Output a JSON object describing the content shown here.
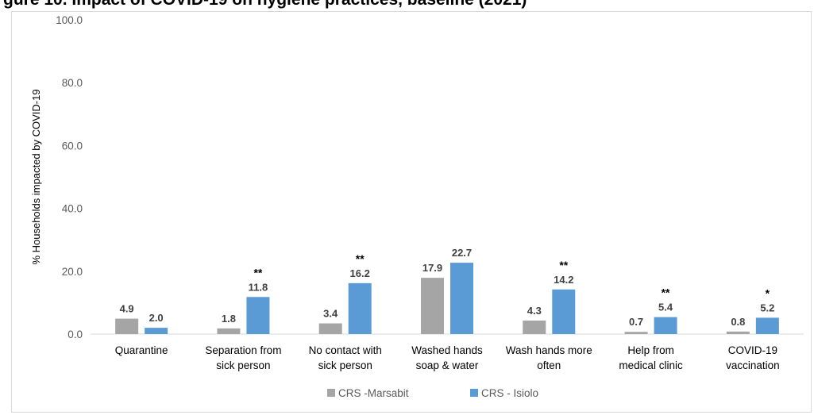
{
  "title": "gure 10. Impact of COVID-19 on hygiene practices, baseline (2021)",
  "chart_data": {
    "type": "bar",
    "title": "",
    "ylabel": "% Households impacted by COVID-19",
    "xlabel": "",
    "ylim": [
      0,
      100
    ],
    "yticks": [
      "0.0",
      "20.0",
      "40.0",
      "60.0",
      "80.0",
      "100.0"
    ],
    "grid": false,
    "legend": "bottom",
    "categories": [
      [
        "Quarantine"
      ],
      [
        "Separation from",
        "sick person"
      ],
      [
        "No contact with",
        "sick person"
      ],
      [
        "Washed hands",
        "soap & water"
      ],
      [
        "Wash hands more",
        "often"
      ],
      [
        "Help from",
        "medical clinic"
      ],
      [
        "COVID-19",
        "vaccination"
      ]
    ],
    "series": [
      {
        "name": "CRS -Marsabit",
        "color": "#a5a5a5",
        "values": [
          4.9,
          1.8,
          3.4,
          17.9,
          4.3,
          0.7,
          0.8
        ],
        "labels": [
          "4.9",
          "1.8",
          "3.4",
          "17.9",
          "4.3",
          "0.7",
          "0.8"
        ]
      },
      {
        "name": "CRS - Isiolo",
        "color": "#5b9bd5",
        "values": [
          2.0,
          11.8,
          16.2,
          22.7,
          14.2,
          5.4,
          5.2
        ],
        "labels": [
          "2.0",
          "11.8",
          "16.2",
          "22.7",
          "14.2",
          "5.4",
          "5.2"
        ]
      }
    ],
    "significance": [
      "",
      "**",
      "**",
      "",
      "**",
      "**",
      "*"
    ]
  }
}
